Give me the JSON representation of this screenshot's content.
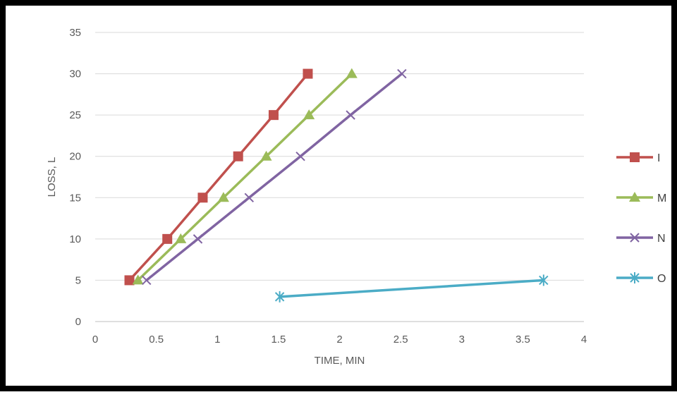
{
  "chart_data": {
    "type": "line",
    "xlabel": "TIME, MIN",
    "ylabel": "LOSS, L",
    "xlim": [
      0,
      4
    ],
    "ylim": [
      0,
      35
    ],
    "xticks": [
      "0",
      "0.5",
      "1",
      "1.5",
      "2",
      "2.5",
      "3",
      "3.5",
      "4"
    ],
    "yticks": [
      "0",
      "5",
      "10",
      "15",
      "20",
      "25",
      "30",
      "35"
    ],
    "grid": "horizontal",
    "legend_position": "right",
    "series": [
      {
        "name": "I",
        "color": "#c0504d",
        "marker": "square",
        "points": [
          [
            0.28,
            5
          ],
          [
            0.59,
            10
          ],
          [
            0.88,
            15
          ],
          [
            1.17,
            20
          ],
          [
            1.46,
            25
          ],
          [
            1.74,
            30
          ]
        ]
      },
      {
        "name": "M",
        "color": "#9bbb59",
        "marker": "triangle",
        "points": [
          [
            0.35,
            5
          ],
          [
            0.7,
            10
          ],
          [
            1.05,
            15
          ],
          [
            1.4,
            20
          ],
          [
            1.75,
            25
          ],
          [
            2.1,
            30
          ]
        ]
      },
      {
        "name": "N",
        "color": "#8064a2",
        "marker": "x",
        "points": [
          [
            0.42,
            5
          ],
          [
            0.84,
            10
          ],
          [
            1.26,
            15
          ],
          [
            1.68,
            20
          ],
          [
            2.09,
            25
          ],
          [
            2.51,
            30
          ]
        ]
      },
      {
        "name": "O",
        "color": "#4bacc6",
        "marker": "star",
        "points": [
          [
            1.51,
            3
          ],
          [
            3.67,
            5
          ]
        ]
      }
    ]
  }
}
